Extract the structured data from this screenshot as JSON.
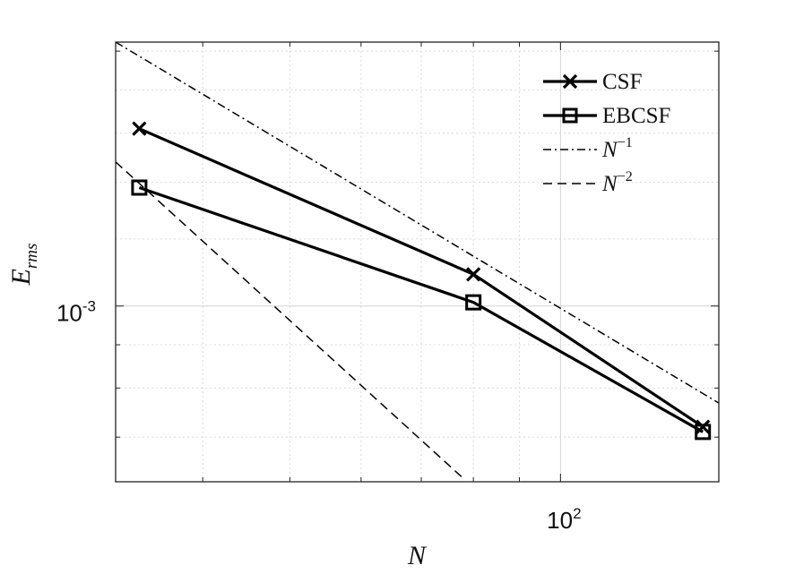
{
  "chart_data": {
    "type": "line",
    "x_scale": "log",
    "y_scale": "log",
    "xlim": [
      32,
      150
    ],
    "ylim": [
      0.00062,
      0.00205
    ],
    "grid": true,
    "xlabel": "N",
    "ylabel": {
      "base": "E",
      "sub": "rms"
    },
    "xticks": [
      {
        "value": 100,
        "base": "10",
        "exp": "2"
      }
    ],
    "yticks": [
      {
        "value": 0.001,
        "base": "10",
        "exp": "-3"
      }
    ],
    "legend_position": "top-right",
    "series": [
      {
        "name": "CSF",
        "marker": "x",
        "line": "solid",
        "color": "#000000",
        "x": [
          34,
          80,
          144
        ],
        "y": [
          0.00162,
          0.00109,
          0.00072
        ]
      },
      {
        "name": "EBCSF",
        "marker": "square",
        "line": "solid",
        "color": "#000000",
        "x": [
          34,
          80,
          144
        ],
        "y": [
          0.00138,
          0.00101,
          0.00071
        ]
      },
      {
        "name": "N^{-1}",
        "legend": {
          "base": "N",
          "sup": "−1"
        },
        "marker": "none",
        "line": "dashdot",
        "color": "#000000",
        "x": [
          32,
          150
        ],
        "y": [
          0.00205,
          0.000768
        ]
      },
      {
        "name": "N^{-2}",
        "legend": {
          "base": "N",
          "sup": "−2"
        },
        "marker": "none",
        "line": "dashed",
        "color": "#000000",
        "x": [
          32,
          78.2
        ],
        "y": [
          0.00148,
          0.000624
        ]
      }
    ]
  }
}
